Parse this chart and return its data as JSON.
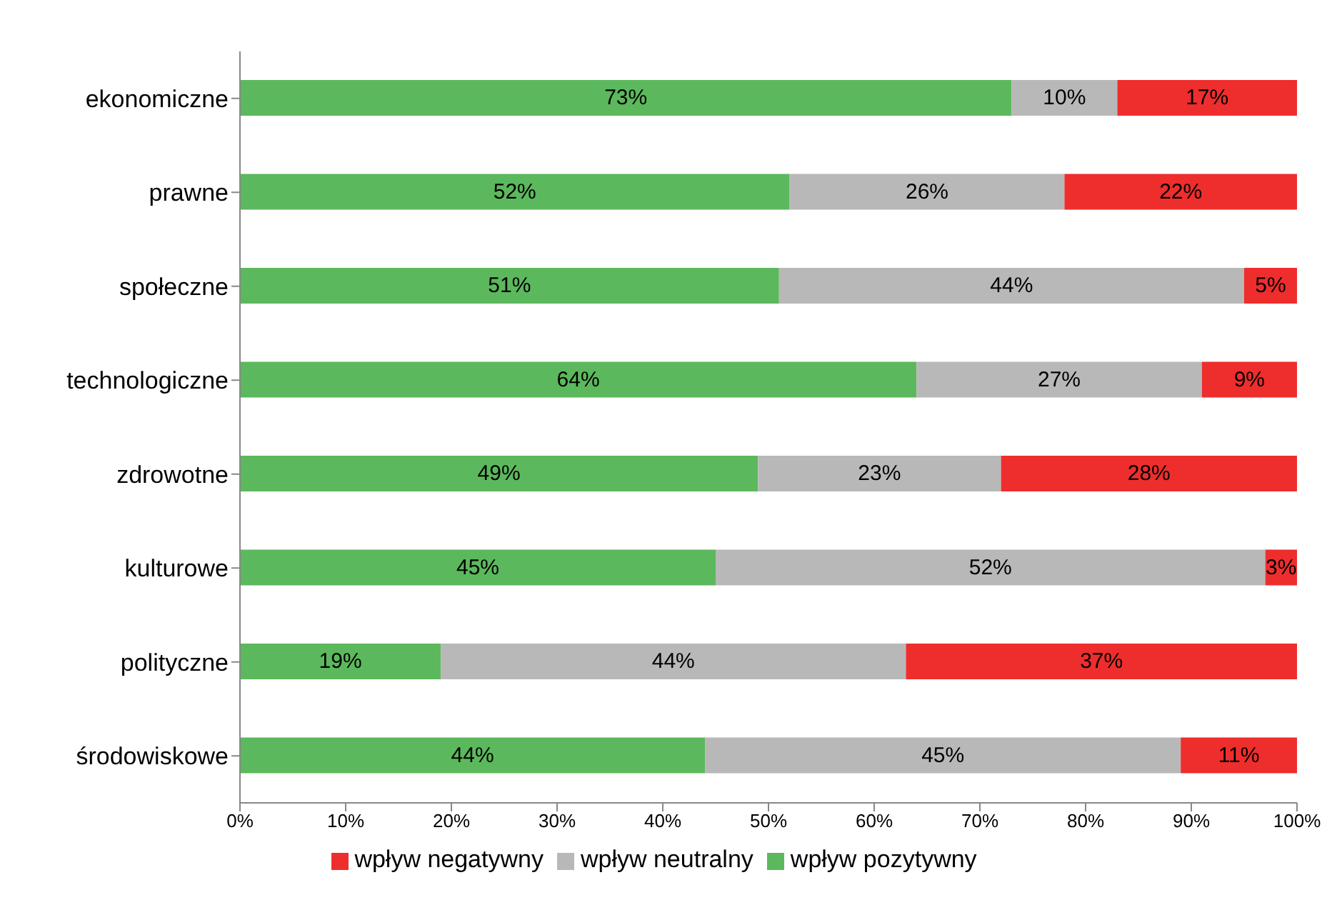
{
  "chart_data": {
    "type": "bar",
    "orientation": "horizontal",
    "stacked": true,
    "categories": [
      "ekonomiczne",
      "prawne",
      "społeczne",
      "technologiczne",
      "zdrowotne",
      "kulturowe",
      "polityczne",
      "środowiskowe"
    ],
    "series": [
      {
        "name": "wpływ pozytywny",
        "color": "#5cb85c",
        "values": [
          73,
          52,
          51,
          64,
          49,
          45,
          19,
          44
        ],
        "value_labels": [
          "73%",
          "52%",
          "51%",
          "64%",
          "49%",
          "45%",
          "19%",
          "44%"
        ]
      },
      {
        "name": "wpływ neutralny",
        "color": "#b8b8b8",
        "values": [
          10,
          26,
          44,
          27,
          23,
          52,
          44,
          45
        ],
        "value_labels": [
          "10%",
          "26%",
          "44%",
          "27%",
          "23%",
          "52%",
          "44%",
          "45%"
        ]
      },
      {
        "name": "wpływ negatywny",
        "color": "#ee2d2d",
        "values": [
          17,
          22,
          5,
          9,
          28,
          3,
          37,
          11
        ],
        "value_labels": [
          "17%",
          "22%",
          "5%",
          "9%",
          "28%",
          "3%",
          "37%",
          "11%"
        ]
      }
    ],
    "xlim": [
      0,
      100
    ],
    "xticks": [
      {
        "value": 0,
        "label": "0%"
      },
      {
        "value": 10,
        "label": "10%"
      },
      {
        "value": 20,
        "label": "20%"
      },
      {
        "value": 30,
        "label": "30%"
      },
      {
        "value": 40,
        "label": "40%"
      },
      {
        "value": 50,
        "label": "50%"
      },
      {
        "value": 60,
        "label": "60%"
      },
      {
        "value": 70,
        "label": "70%"
      },
      {
        "value": 80,
        "label": "80%"
      },
      {
        "value": 90,
        "label": "90%"
      },
      {
        "value": 100,
        "label": "100%"
      }
    ],
    "legend": "bottom",
    "grid": false
  }
}
